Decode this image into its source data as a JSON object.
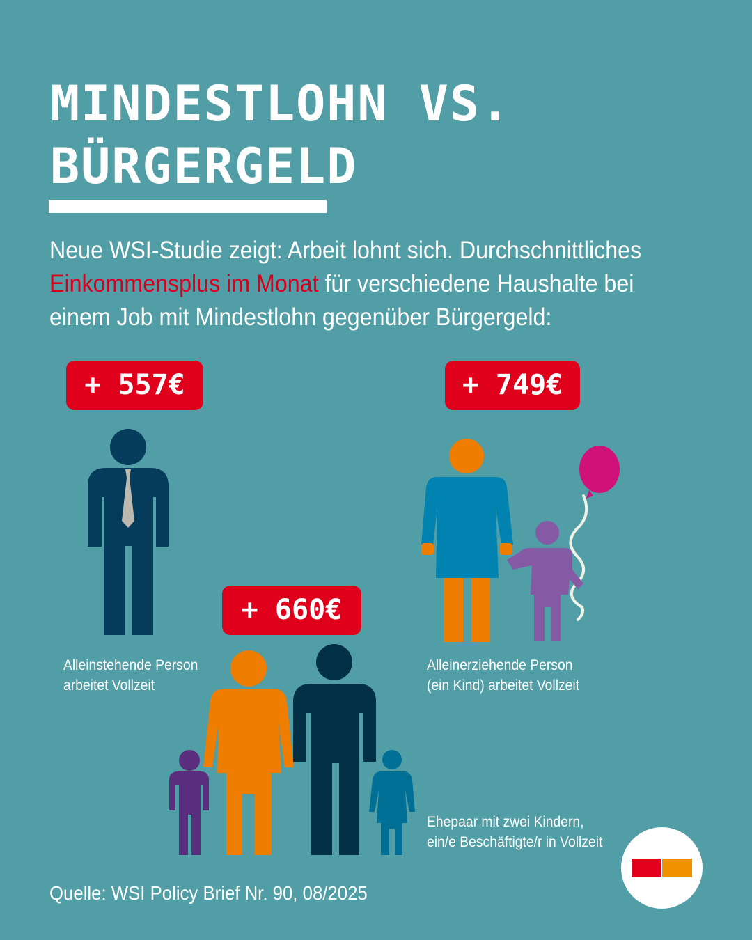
{
  "title": {
    "line1": "MINDESTLOHN VS.",
    "line2": "BÜRGERGELD"
  },
  "intro": {
    "before": "Neue WSI-Studie zeigt: Arbeit lohnt sich. Durchschnittliches ",
    "highlight": "Einkommensplus im Monat",
    "after": " für verschiedene Haushalte bei einem Job mit Mindestlohn gegenüber Bürgergeld:"
  },
  "households": [
    {
      "badge": "+ 557€",
      "caption_line1": "Alleinstehende Person",
      "caption_line2": "arbeitet Vollzeit"
    },
    {
      "badge": "+ 660€",
      "caption_line1": "Ehepaar mit zwei Kindern,",
      "caption_line2": "ein/e Beschäftigte/r in Vollzeit"
    },
    {
      "badge": "+ 749€",
      "caption_line1": "Alleinerziehende Person",
      "caption_line2": "(ein Kind) arbeitet Vollzeit"
    }
  ],
  "source": "Quelle: WSI Policy Brief Nr. 90, 08/2025",
  "colors": {
    "background": "#529ea6",
    "badge": "#e0001b",
    "highlight": "#d6001c",
    "navy": "#053c5b",
    "dark_navy": "#023047",
    "orange": "#ef7d00",
    "blue": "#0083b0",
    "purple": "#8659a5",
    "dark_purple": "#5b2d7f",
    "balloon": "#d0117a",
    "logo_red": "#e2001a",
    "logo_orange": "#f39200"
  }
}
